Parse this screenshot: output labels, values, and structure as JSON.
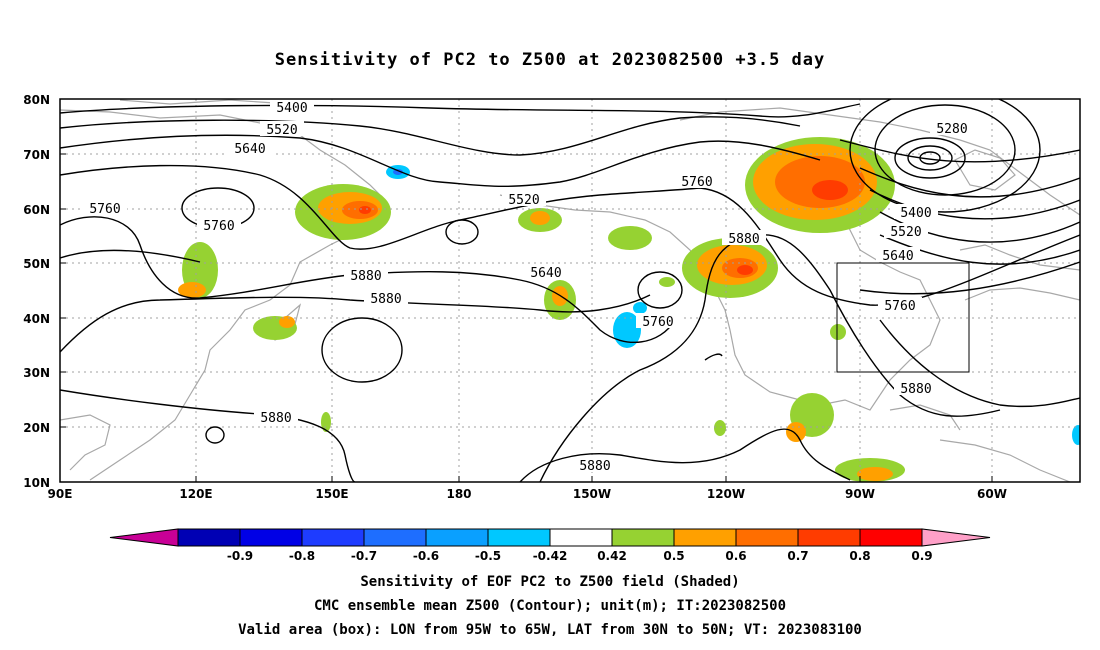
{
  "title": "Sensitivity of PC2 to Z500 at 2023082500 +3.5 day",
  "lat_labels": [
    "80N",
    "70N",
    "60N",
    "50N",
    "40N",
    "30N",
    "20N",
    "10N"
  ],
  "lon_labels": [
    "90E",
    "120E",
    "150E",
    "180",
    "150W",
    "120W",
    "90W",
    "60W"
  ],
  "contour_labels": [
    "5400",
    "5520",
    "5640",
    "5760",
    "5760",
    "5880",
    "5880",
    "5760",
    "5520",
    "5640",
    "5760",
    "5880",
    "5280",
    "5400",
    "5520",
    "5640",
    "5760",
    "5880",
    "5880"
  ],
  "colorbar": {
    "labels": [
      "-0.9",
      "-0.8",
      "-0.7",
      "-0.6",
      "-0.5",
      "-0.42",
      "0.42",
      "0.5",
      "0.6",
      "0.7",
      "0.8",
      "0.9"
    ],
    "colors": [
      "#c80096",
      "#0000b4",
      "#0000e6",
      "#1e3cff",
      "#1e6eff",
      "#0aa0ff",
      "#00c8ff",
      "#ffffff",
      "#96d232",
      "#ffa000",
      "#ff6e00",
      "#ff3c00",
      "#ff0000",
      "#ffa0c8"
    ]
  },
  "footer": {
    "line1": "Sensitivity of EOF PC2 to Z500 field (Shaded)",
    "line2": "CMC ensemble mean Z500 (Contour); unit(m); IT:2023082500",
    "line3": "Valid area (box): LON from 95W to 65W, LAT from 30N to 50N; VT: 2023083100"
  }
}
